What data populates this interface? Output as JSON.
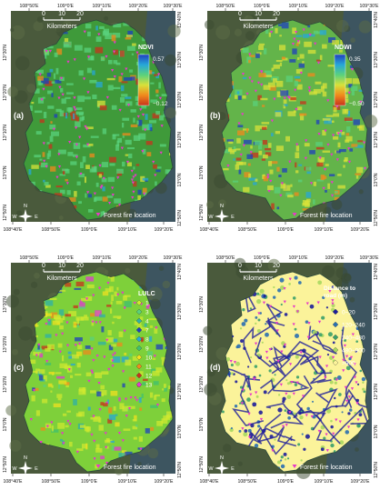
{
  "panels": [
    {
      "id": "a",
      "tag": "(a)",
      "top_ticks": [
        "108°50'E",
        "109°0'E",
        "109°10'E",
        "109°20'E",
        "109°30'E"
      ],
      "bottom_ticks": [
        "108°40'E",
        "108°50'E",
        "109°0'E",
        "109°10'E",
        "109°20'E"
      ],
      "left_ticks": [
        "13°30'N",
        "13°20'N",
        "13°10'N",
        "13°0'N",
        "12°50'N"
      ],
      "right_ticks": [
        "13°40'N",
        "13°30'N",
        "13°20'N",
        "13°10'N",
        "13°0'N",
        "12°50'N"
      ],
      "scale": {
        "labels": [
          "0",
          "10",
          "20"
        ],
        "unit": "Kilometers"
      },
      "legend": {
        "type": "gradient",
        "title": "NDVI",
        "max": "0.57",
        "min": "−0.12",
        "colors": [
          "#1e3fbf",
          "#27a7d8",
          "#5ad17c",
          "#d8e13a",
          "#f08a1c",
          "#c8321c"
        ]
      },
      "fire_label": "Forest fire location",
      "base_color": "#3f9a3a"
    },
    {
      "id": "b",
      "tag": "(b)",
      "top_ticks": [
        "108°50'E",
        "109°0'E",
        "109°10'E",
        "109°20'E",
        "109°30'E"
      ],
      "bottom_ticks": [
        "108°40'E",
        "108°50'E",
        "109°0'E",
        "109°10'E",
        "109°20'E"
      ],
      "left_ticks": [
        "13°30'N",
        "13°20'N",
        "13°10'N",
        "13°0'N",
        "12°50'N"
      ],
      "right_ticks": [
        "13°40'N",
        "13°30'N",
        "13°20'N",
        "13°10'N",
        "13°0'N",
        "12°50'N"
      ],
      "scale": {
        "labels": [
          "0",
          "10",
          "20"
        ],
        "unit": "Kilometers"
      },
      "legend": {
        "type": "gradient",
        "title": "NDWI",
        "max": "0.35",
        "min": "−0.50",
        "colors": [
          "#1e3fbf",
          "#27a7d8",
          "#5ad17c",
          "#d8e13a",
          "#f08a1c",
          "#c8321c"
        ]
      },
      "fire_label": "Forest fire location",
      "base_color": "#63b44a"
    },
    {
      "id": "c",
      "tag": "(c)",
      "top_ticks": [
        "108°50'E",
        "109°0'E",
        "109°10'E",
        "109°20'E",
        "109°30'E"
      ],
      "bottom_ticks": [
        "108°40'E",
        "108°50'E",
        "109°0'E",
        "109°10'E",
        "109°20'E"
      ],
      "left_ticks": [
        "13°30'N",
        "13°20'N",
        "13°10'N",
        "13°0'N",
        "12°50'N"
      ],
      "right_ticks": [
        "13°40'N",
        "13°30'N",
        "13°20'N",
        "13°10'N",
        "13°0'N",
        "12°50'N"
      ],
      "scale": {
        "labels": [
          "0",
          "10",
          "20"
        ],
        "unit": "Kilometers"
      },
      "legend": {
        "type": "classes",
        "title": "LULC",
        "items": [
          {
            "label": "1",
            "color": "#cfe830"
          },
          {
            "label": "3",
            "color": "#5ad17c"
          },
          {
            "label": "4",
            "color": "#2fb0a8"
          },
          {
            "label": "7",
            "color": "#1e3fbf"
          },
          {
            "label": "8",
            "color": "#27a7d8"
          },
          {
            "label": "9",
            "color": "#3fc070"
          },
          {
            "label": "10",
            "color": "#f0e020"
          },
          {
            "label": "11",
            "color": "#f08a1c"
          },
          {
            "label": "12",
            "color": "#c8321c"
          },
          {
            "label": "13",
            "color": "#e03ad0"
          }
        ]
      },
      "fire_label": "Forest fire location",
      "base_color": "#7ed03a"
    },
    {
      "id": "d",
      "tag": "(d)",
      "top_ticks": [
        "108°50'E",
        "109°0'E",
        "109°10'E",
        "109°20'E",
        "109°30'E"
      ],
      "bottom_ticks": [
        "108°40'E",
        "108°50'E",
        "109°0'E",
        "109°10'E",
        "109°20'E"
      ],
      "left_ticks": [
        "13°30'N",
        "13°20'N",
        "13°10'N",
        "13°0'N",
        "12°50'N"
      ],
      "right_ticks": [
        "13°40'N",
        "13°30'N",
        "13°20'N",
        "13°10'N",
        "13°0'N",
        "12°50'N"
      ],
      "scale": {
        "labels": [
          "0",
          "10",
          "20"
        ],
        "unit": "Kilometers"
      },
      "legend": {
        "type": "classes",
        "title": "Distance to road (m)",
        "items": [
          {
            "label": "0~20",
            "color": "#1e1e9a"
          },
          {
            "label": "120~240",
            "color": "#2a6fb0"
          },
          {
            "label": "240~480",
            "color": "#3aa06a"
          },
          {
            "label": "480~900",
            "color": "#a8d860"
          },
          {
            "label": ">900",
            "color": "#fbf39a"
          }
        ]
      },
      "fire_label": "Forest fire location",
      "base_color": "#fbf39a"
    }
  ],
  "compass": {
    "n": "N",
    "s": "S",
    "e": "E",
    "w": "W"
  },
  "colors": {
    "satellite": "#4a5a3c",
    "sea": "#3b5566",
    "fire_marker": "#e639c8",
    "frame": "#ffffff"
  }
}
